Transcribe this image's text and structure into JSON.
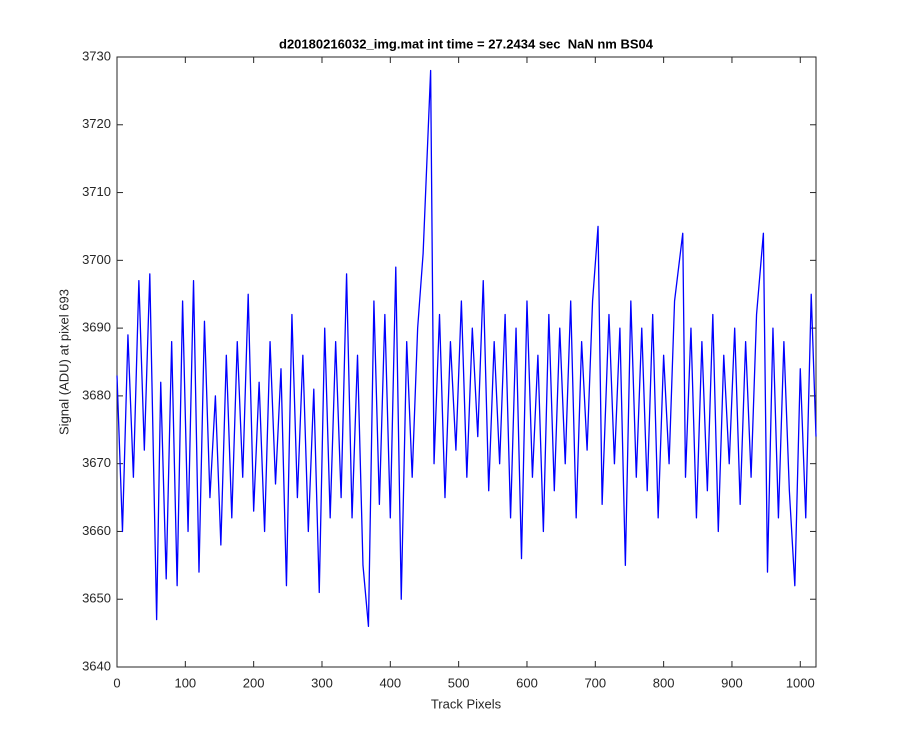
{
  "chart_data": {
    "type": "line",
    "title": "d20180216032_img.mat int time = 27.2434 sec  NaN nm BS04",
    "x_label": "Track Pixels",
    "y_label": "Signal (ADU) at pixel 693",
    "color": "#0000ff",
    "xlim": [
      0,
      1023
    ],
    "ylim": [
      3640,
      3730
    ],
    "xticks": [
      0,
      100,
      200,
      300,
      400,
      500,
      600,
      700,
      800,
      900,
      1000
    ],
    "yticks": [
      3640,
      3650,
      3660,
      3670,
      3680,
      3690,
      3700,
      3710,
      3720,
      3730
    ],
    "x": [
      0,
      8,
      16,
      24,
      32,
      40,
      48,
      58,
      64,
      72,
      80,
      88,
      96,
      104,
      112,
      120,
      128,
      136,
      144,
      152,
      160,
      168,
      176,
      184,
      192,
      200,
      208,
      216,
      224,
      232,
      240,
      248,
      256,
      264,
      272,
      280,
      288,
      296,
      304,
      312,
      320,
      328,
      336,
      344,
      352,
      360,
      368,
      376,
      384,
      392,
      400,
      408,
      416,
      424,
      432,
      440,
      448,
      459,
      464,
      472,
      480,
      488,
      496,
      504,
      512,
      520,
      528,
      536,
      544,
      552,
      560,
      568,
      576,
      584,
      592,
      600,
      608,
      616,
      624,
      632,
      640,
      648,
      656,
      664,
      672,
      680,
      688,
      696,
      704,
      710,
      720,
      728,
      736,
      744,
      752,
      760,
      768,
      776,
      784,
      792,
      800,
      808,
      816,
      828,
      832,
      840,
      848,
      856,
      864,
      872,
      880,
      888,
      896,
      904,
      912,
      920,
      928,
      936,
      946,
      952,
      960,
      968,
      976,
      984,
      992,
      1000,
      1008,
      1016,
      1023
    ],
    "values": [
      3683,
      3660,
      3689,
      3668,
      3697,
      3672,
      3698,
      3647,
      3682,
      3653,
      3688,
      3652,
      3694,
      3660,
      3697,
      3654,
      3691,
      3665,
      3680,
      3658,
      3686,
      3662,
      3688,
      3668,
      3695,
      3663,
      3682,
      3660,
      3688,
      3667,
      3684,
      3652,
      3692,
      3665,
      3686,
      3660,
      3681,
      3651,
      3690,
      3662,
      3688,
      3665,
      3698,
      3662,
      3686,
      3655,
      3646,
      3694,
      3664,
      3692,
      3662,
      3699,
      3650,
      3688,
      3668,
      3690,
      3701,
      3728,
      3670,
      3692,
      3665,
      3688,
      3672,
      3694,
      3668,
      3690,
      3674,
      3697,
      3666,
      3688,
      3670,
      3692,
      3662,
      3690,
      3656,
      3694,
      3668,
      3686,
      3660,
      3692,
      3666,
      3690,
      3670,
      3694,
      3662,
      3688,
      3672,
      3694,
      3705,
      3664,
      3692,
      3670,
      3690,
      3655,
      3694,
      3668,
      3690,
      3666,
      3692,
      3662,
      3686,
      3670,
      3694,
      3704,
      3668,
      3690,
      3662,
      3688,
      3666,
      3692,
      3660,
      3686,
      3670,
      3690,
      3664,
      3688,
      3668,
      3692,
      3704,
      3654,
      3690,
      3662,
      3688,
      3666,
      3652,
      3684,
      3662,
      3695,
      3674
    ]
  }
}
